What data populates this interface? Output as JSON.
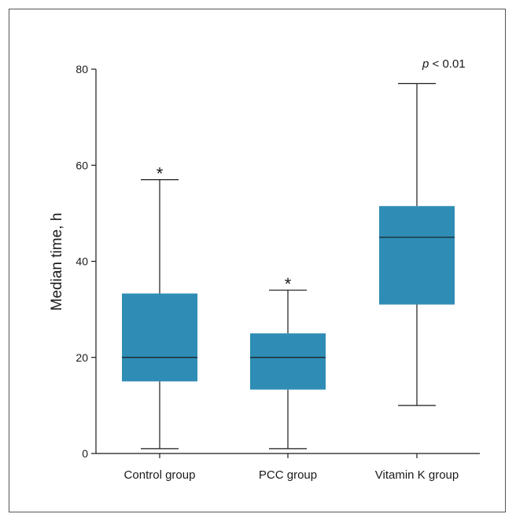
{
  "chart_data": {
    "type": "box",
    "ylabel": "Median time, h",
    "ylim": [
      0,
      80
    ],
    "yticks": [
      "0",
      "20",
      "40",
      "60",
      "80"
    ],
    "box_color": "#2f8db5",
    "categories": [
      "Control group",
      "PCC group",
      "Vitamin K group"
    ],
    "boxes": [
      {
        "min": 1,
        "q1": 15,
        "median": 20,
        "q3": 33.3,
        "max": 57,
        "marker": "*"
      },
      {
        "min": 1,
        "q1": 13.3,
        "median": 20,
        "q3": 25,
        "max": 34,
        "marker": "*"
      },
      {
        "min": 10,
        "q1": 31,
        "median": 45,
        "q3": 51.5,
        "max": 77,
        "marker": ""
      }
    ],
    "annotation": {
      "p_symbol": "p",
      "p_text": " < 0.01"
    }
  }
}
